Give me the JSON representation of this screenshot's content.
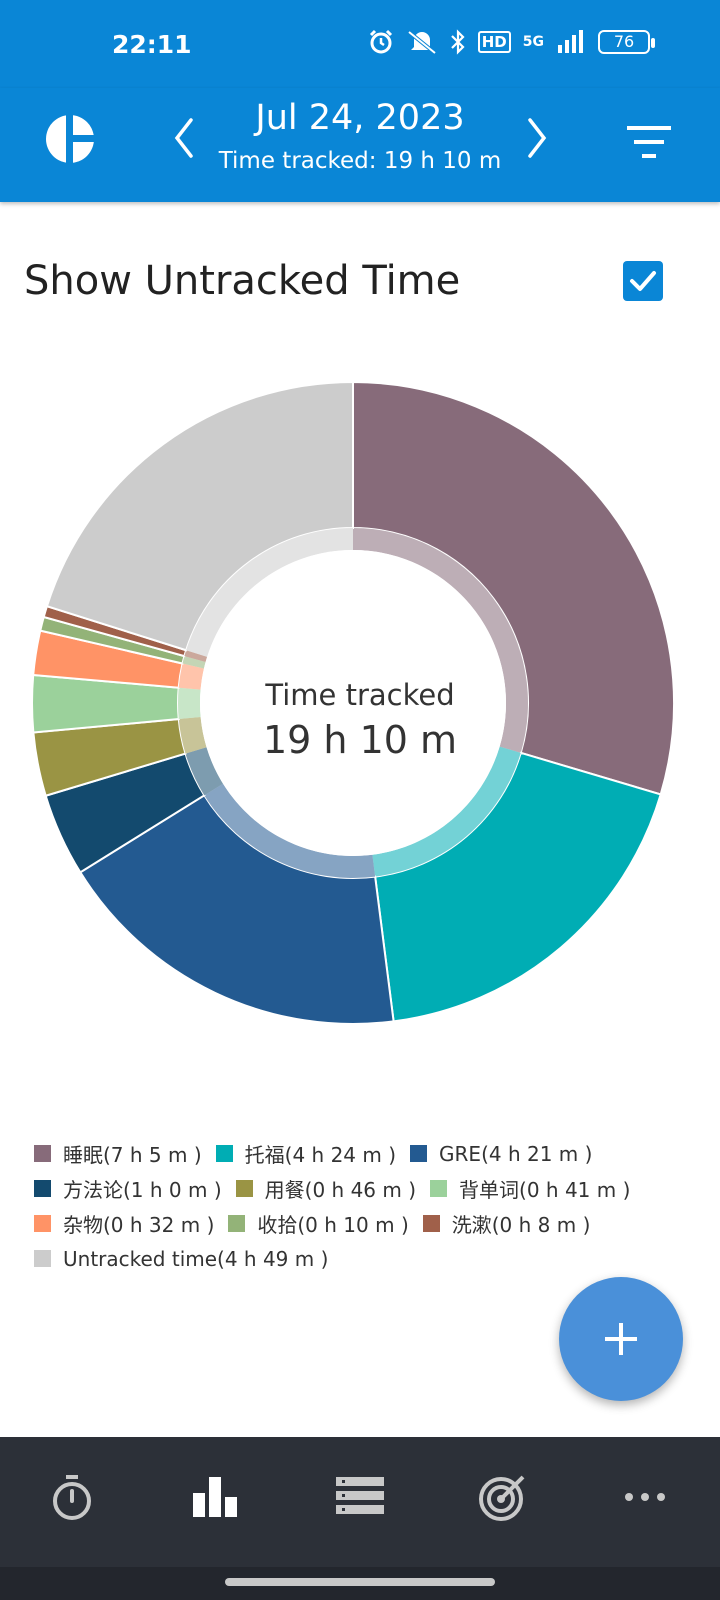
{
  "status_bar": {
    "time": "22:11",
    "network": "5G",
    "hd": "HD",
    "battery": "76"
  },
  "header": {
    "date": "Jul 24, 2023",
    "subtitle": "Time tracked: 19 h 10 m"
  },
  "section": {
    "title": "Show Untracked Time",
    "checked": true
  },
  "center": {
    "label": "Time tracked",
    "value": "19 h 10 m"
  },
  "chart_data": {
    "type": "pie",
    "style": "donut",
    "total_minutes": 1439,
    "slices": [
      {
        "label": "睡眠",
        "display": "睡眠(7 h 5 m )",
        "minutes": 425,
        "color": "#876b7a"
      },
      {
        "label": "托福",
        "display": "托福(4 h 24 m )",
        "minutes": 264,
        "color": "#00adb4"
      },
      {
        "label": "GRE",
        "display": "GRE(4 h 21 m )",
        "minutes": 261,
        "color": "#235a91"
      },
      {
        "label": "方法论",
        "display": "方法论(1 h 0 m )",
        "minutes": 60,
        "color": "#134a6e"
      },
      {
        "label": "用餐",
        "display": "用餐(0 h 46 m )",
        "minutes": 46,
        "color": "#9a9444"
      },
      {
        "label": "背单词",
        "display": "背单词(0 h 41 m )",
        "minutes": 41,
        "color": "#9bd19b"
      },
      {
        "label": "杂物",
        "display": "杂物(0 h 32 m )",
        "minutes": 32,
        "color": "#ff9366"
      },
      {
        "label": "收拾",
        "display": "收拾(0 h 10 m )",
        "minutes": 10,
        "color": "#93b378"
      },
      {
        "label": "洗漱",
        "display": "洗漱(0 h 8 m )",
        "minutes": 8,
        "color": "#a0604a"
      },
      {
        "label": "Untracked time",
        "display": "Untracked time(4 h 49 m )",
        "minutes": 289,
        "color": "#cccccc"
      }
    ]
  },
  "bottom_nav": [
    {
      "icon": "stopwatch-icon"
    },
    {
      "icon": "bar-chart-icon"
    },
    {
      "icon": "list-icon"
    },
    {
      "icon": "target-icon"
    },
    {
      "icon": "more-icon"
    }
  ]
}
